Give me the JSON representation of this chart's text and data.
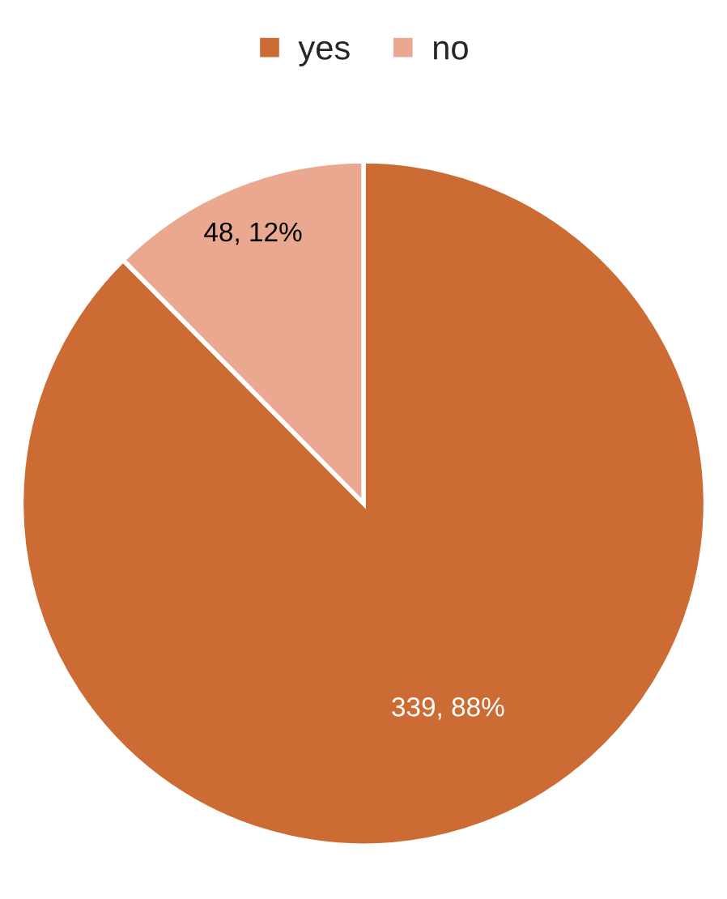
{
  "chart_data": {
    "type": "pie",
    "categories": [
      "yes",
      "no"
    ],
    "values": [
      339,
      48
    ],
    "colors": [
      "#cd6b35",
      "#eaa891"
    ],
    "value_labels": [
      "339, 88%",
      "48, 12%"
    ],
    "legend": "top"
  }
}
